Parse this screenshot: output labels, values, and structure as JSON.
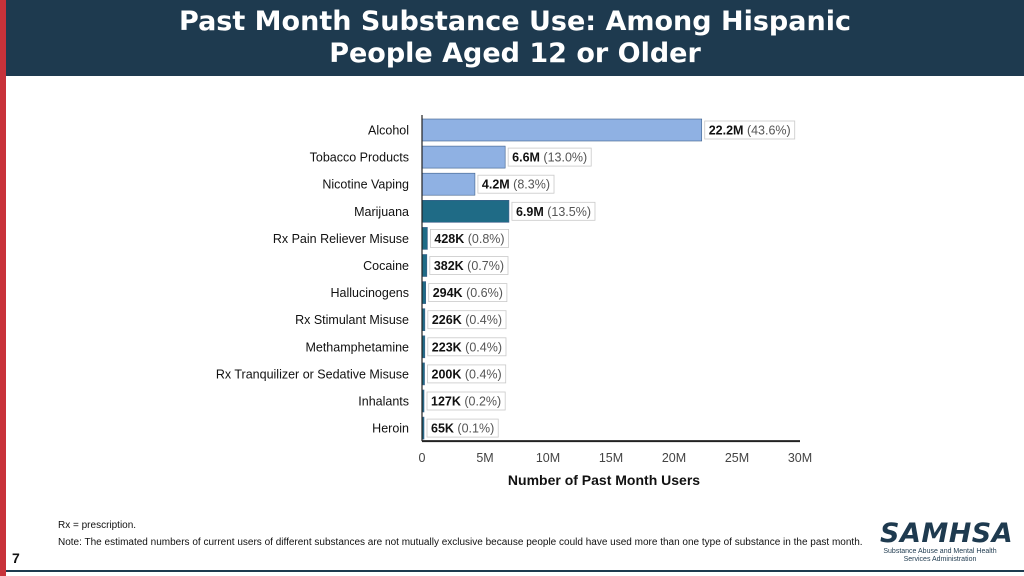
{
  "header": {
    "title": "Past Month Substance Use: Among Hispanic People Aged 12 or Older"
  },
  "colors": {
    "header_bg": "#1e3a4f",
    "accent_red": "#c8323a",
    "bar_light": "#8fb1e3",
    "bar_dark": "#1f6b86"
  },
  "chart_data": {
    "type": "bar",
    "orientation": "horizontal",
    "title": "",
    "xlabel": "Number of Past Month Users",
    "ylabel": "",
    "xlim": [
      0,
      30000000
    ],
    "xticks": [
      0,
      5000000,
      10000000,
      15000000,
      20000000,
      25000000,
      30000000
    ],
    "xtick_labels": [
      "0",
      "5M",
      "10M",
      "15M",
      "20M",
      "25M",
      "30M"
    ],
    "grid": false,
    "categories": [
      "Alcohol",
      "Tobacco Products",
      "Nicotine Vaping",
      "Marijuana",
      "Rx Pain Reliever Misuse",
      "Cocaine",
      "Hallucinogens",
      "Rx Stimulant Misuse",
      "Methamphetamine",
      "Rx Tranquilizer or Sedative Misuse",
      "Inhalants",
      "Heroin"
    ],
    "values": [
      22200000,
      6600000,
      4200000,
      6900000,
      428000,
      382000,
      294000,
      226000,
      223000,
      200000,
      127000,
      65000
    ],
    "value_labels": [
      "22.2M",
      "6.6M",
      "4.2M",
      "6.9M",
      "428K",
      "382K",
      "294K",
      "226K",
      "223K",
      "200K",
      "127K",
      "65K"
    ],
    "percent_labels": [
      "(43.6%)",
      "(13.0%)",
      "(8.3%)",
      "(13.5%)",
      "(0.8%)",
      "(0.7%)",
      "(0.6%)",
      "(0.4%)",
      "(0.4%)",
      "(0.4%)",
      "(0.2%)",
      "(0.1%)"
    ],
    "bar_colors": [
      "#8fb1e3",
      "#8fb1e3",
      "#8fb1e3",
      "#1f6b86",
      "#1f6b86",
      "#1f6b86",
      "#1f6b86",
      "#1f6b86",
      "#1f6b86",
      "#1f6b86",
      "#1f6b86",
      "#1f6b86"
    ]
  },
  "footer": {
    "abbrev_note": "Rx = prescription.",
    "note": "Note: The estimated numbers of current users of different substances are not mutually exclusive because people could have used more than one type of substance in the past month."
  },
  "page_number": "7",
  "logo": {
    "name": "SAMHSA",
    "tagline": "Substance Abuse and Mental Health Services Administration"
  }
}
